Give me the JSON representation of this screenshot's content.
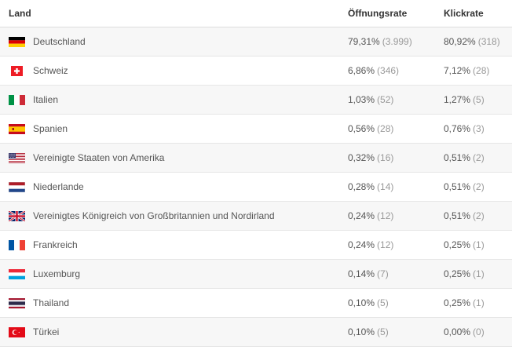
{
  "table": {
    "headers": {
      "country": "Land",
      "open_rate": "Öffnungsrate",
      "click_rate": "Klickrate"
    },
    "rows": [
      {
        "flag": "de-flag-icon",
        "country": "Deutschland",
        "open_rate": "79,31%",
        "open_count": "(3.999)",
        "click_rate": "80,92%",
        "click_count": "(318)"
      },
      {
        "flag": "ch-flag-icon",
        "country": "Schweiz",
        "open_rate": "6,86%",
        "open_count": "(346)",
        "click_rate": "7,12%",
        "click_count": "(28)"
      },
      {
        "flag": "it-flag-icon",
        "country": "Italien",
        "open_rate": "1,03%",
        "open_count": "(52)",
        "click_rate": "1,27%",
        "click_count": "(5)"
      },
      {
        "flag": "es-flag-icon",
        "country": "Spanien",
        "open_rate": "0,56%",
        "open_count": "(28)",
        "click_rate": "0,76%",
        "click_count": "(3)"
      },
      {
        "flag": "us-flag-icon",
        "country": "Vereinigte Staaten von Amerika",
        "open_rate": "0,32%",
        "open_count": "(16)",
        "click_rate": "0,51%",
        "click_count": "(2)"
      },
      {
        "flag": "nl-flag-icon",
        "country": "Niederlande",
        "open_rate": "0,28%",
        "open_count": "(14)",
        "click_rate": "0,51%",
        "click_count": "(2)"
      },
      {
        "flag": "gb-flag-icon",
        "country": "Vereinigtes Königreich von Großbritannien und Nordirland",
        "open_rate": "0,24%",
        "open_count": "(12)",
        "click_rate": "0,51%",
        "click_count": "(2)"
      },
      {
        "flag": "fr-flag-icon",
        "country": "Frankreich",
        "open_rate": "0,24%",
        "open_count": "(12)",
        "click_rate": "0,25%",
        "click_count": "(1)"
      },
      {
        "flag": "lu-flag-icon",
        "country": "Luxemburg",
        "open_rate": "0,14%",
        "open_count": "(7)",
        "click_rate": "0,25%",
        "click_count": "(1)"
      },
      {
        "flag": "th-flag-icon",
        "country": "Thailand",
        "open_rate": "0,10%",
        "open_count": "(5)",
        "click_rate": "0,25%",
        "click_count": "(1)"
      },
      {
        "flag": "tr-flag-icon",
        "country": "Türkei",
        "open_rate": "0,10%",
        "open_count": "(5)",
        "click_rate": "0,00%",
        "click_count": "(0)"
      }
    ]
  },
  "colors": {
    "text": "#555555",
    "count_text": "#999999",
    "header_text": "#333333",
    "row_stripe": "#f7f7f7",
    "border": "#e6e6e6"
  }
}
